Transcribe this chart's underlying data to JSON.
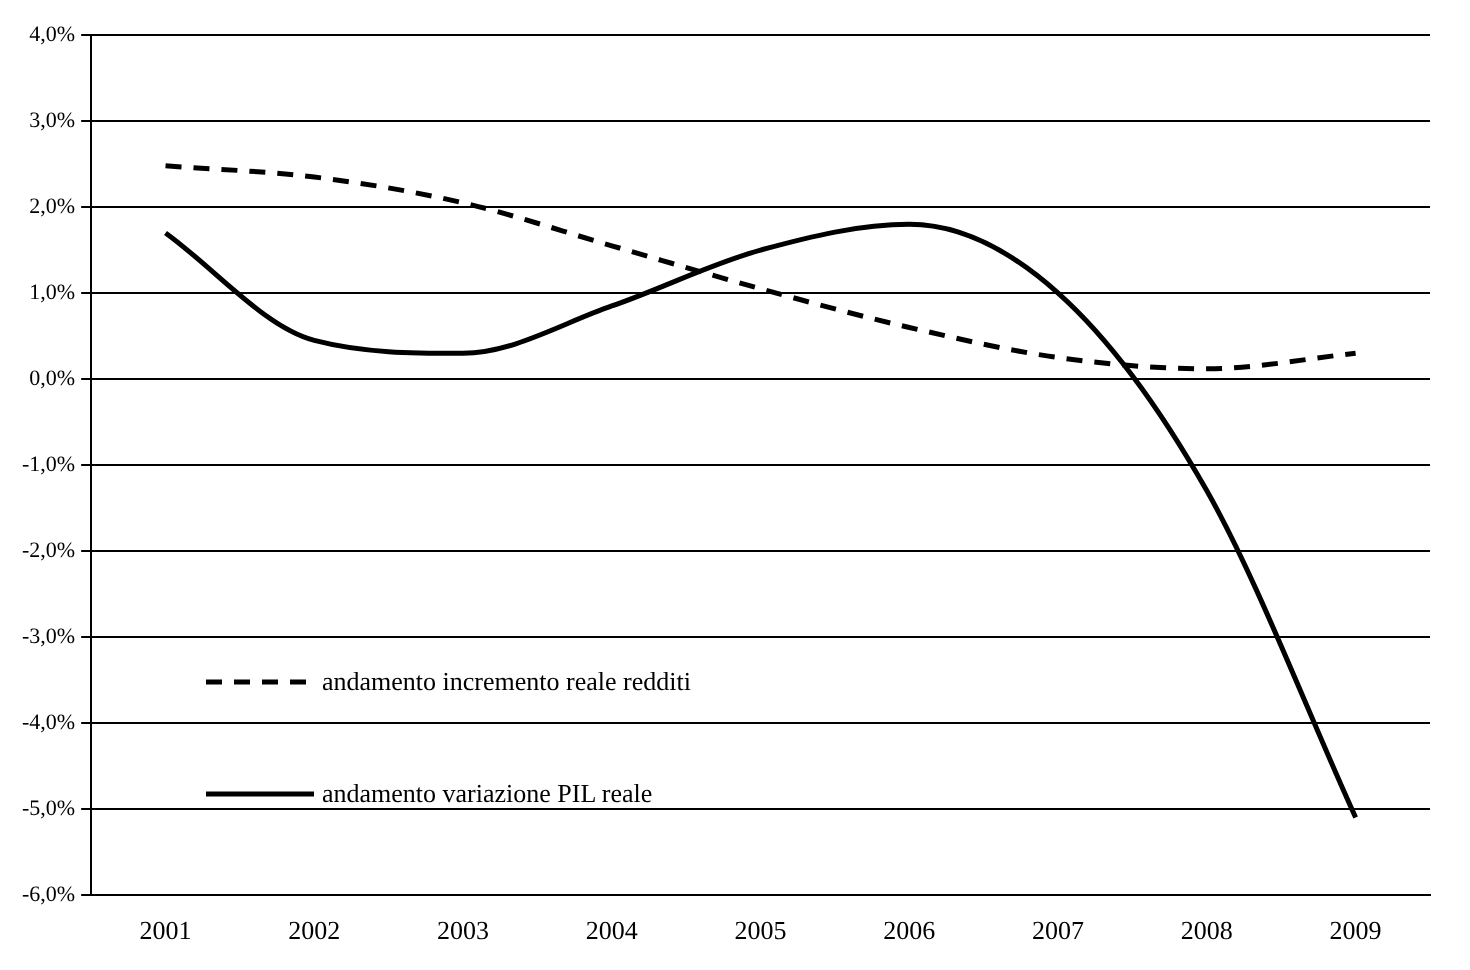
{
  "chart_data": {
    "type": "line",
    "categories": [
      "2001",
      "2002",
      "2003",
      "2004",
      "2005",
      "2006",
      "2007",
      "2008",
      "2009"
    ],
    "series": [
      {
        "name": "andamento incremento reale redditi",
        "color": "#000000",
        "line_style": "dashed",
        "values": [
          2.48,
          2.35,
          2.05,
          1.55,
          1.05,
          0.6,
          0.25,
          0.12,
          0.3
        ]
      },
      {
        "name": "andamento variazione PIL reale",
        "color": "#000000",
        "line_style": "solid",
        "values": [
          1.7,
          0.45,
          0.3,
          0.85,
          1.5,
          1.8,
          1.0,
          -1.3,
          -5.1
        ]
      }
    ],
    "ylim": [
      -6,
      4
    ],
    "yticks": [
      {
        "value": -6,
        "label": "-6,0%"
      },
      {
        "value": -5,
        "label": "-5,0%"
      },
      {
        "value": -4,
        "label": "-4,0%"
      },
      {
        "value": -3,
        "label": "-3,0%"
      },
      {
        "value": -2,
        "label": "-2,0%"
      },
      {
        "value": -1,
        "label": "-1,0%"
      },
      {
        "value": 0,
        "label": "0,0%"
      },
      {
        "value": 1,
        "label": "1,0%"
      },
      {
        "value": 2,
        "label": "2,0%"
      },
      {
        "value": 3,
        "label": "3,0%"
      },
      {
        "value": 4,
        "label": "4,0%"
      }
    ],
    "grid": "y",
    "legend": "bottom left",
    "marker": "none"
  }
}
